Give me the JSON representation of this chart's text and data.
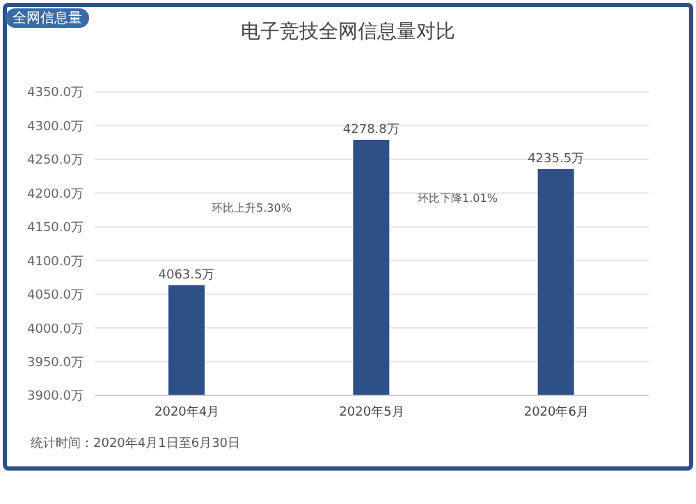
{
  "chart_data": {
    "type": "bar",
    "title": "电子竞技全网信息量对比",
    "categories": [
      "2020年4月",
      "2020年5月",
      "2020年6月"
    ],
    "values": [
      4063.5,
      4278.8,
      4235.5
    ],
    "value_labels": [
      "4063.5万",
      "4278.8万",
      "4235.5万"
    ],
    "color": "#2d5086",
    "ylim": [
      3900,
      4350
    ],
    "yticks": [
      {
        "value": 3900,
        "label": "3900.0万"
      },
      {
        "value": 3950,
        "label": "3950.0万"
      },
      {
        "value": 4000,
        "label": "4000.0万"
      },
      {
        "value": 4050,
        "label": "4050.0万"
      },
      {
        "value": 4100,
        "label": "4100.0万"
      },
      {
        "value": 4150,
        "label": "4150.0万"
      },
      {
        "value": 4200,
        "label": "4200.0万"
      },
      {
        "value": 4250,
        "label": "4250.0万"
      },
      {
        "value": 4300,
        "label": "4300.0万"
      },
      {
        "value": 4350,
        "label": "4350.0万"
      }
    ],
    "grid": "y",
    "annotations": [
      "全网信息量",
      "环比上升5.30%",
      "环比下降1.01%",
      "统计时间：2020年4月1日至6月30日"
    ]
  }
}
